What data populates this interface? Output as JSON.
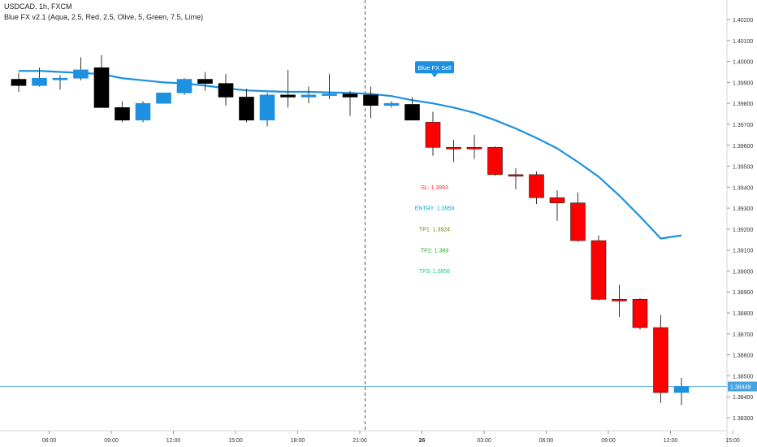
{
  "header": {
    "symbol": "USDCAD, 1h, FXCM",
    "indicator": "Blue FX v2.1 (Aqua, 2.5, Red, 2.5, Olive, 5, Green, 7.5, Lime)"
  },
  "colors": {
    "bull": "#1e90e0",
    "bear_neutral": "#000000",
    "bear_signal": "#ff0000",
    "ma_line": "#1e90e0",
    "signal_label_bg": "#1e90e0",
    "sl": "#ff3333",
    "entry": "#00aacc",
    "tp1": "#808000",
    "tp2": "#22aa22",
    "tp3": "#00dd77",
    "last_price_line": "#4aa3df"
  },
  "chart_data": {
    "type": "candlestick",
    "title": "USDCAD, 1h, FXCM",
    "y_axis": {
      "position": "right",
      "ylim": [
        1.3823,
        1.4027
      ],
      "ticks": [
        "1.40200",
        "1.40100",
        "1.40000",
        "1.39900",
        "1.39800",
        "1.39700",
        "1.39600",
        "1.39500",
        "1.39400",
        "1.39300",
        "1.39200",
        "1.39100",
        "1.39000",
        "1.38900",
        "1.38800",
        "1.38700",
        "1.38600",
        "1.38500",
        "1.38400",
        "1.38300"
      ]
    },
    "x_axis": {
      "ticks": [
        {
          "label": "06:00",
          "bar": 1
        },
        {
          "label": "09:00",
          "bar": 4
        },
        {
          "label": "12:00",
          "bar": 7
        },
        {
          "label": "15:00",
          "bar": 10
        },
        {
          "label": "18:00",
          "bar": 13
        },
        {
          "label": "21:00",
          "bar": 16
        },
        {
          "label": "26",
          "bar": 19
        },
        {
          "label": "03:00",
          "bar": 22
        },
        {
          "label": "06:00",
          "bar": 25
        },
        {
          "label": "09:00",
          "bar": 28
        },
        {
          "label": "12:00",
          "bar": 31
        },
        {
          "label": "15:00",
          "bar": 34
        }
      ]
    },
    "session_divider_bar": 17,
    "candles": [
      {
        "o": 1.39915,
        "h": 1.39945,
        "l": 1.39855,
        "c": 1.39885,
        "k": "n"
      },
      {
        "o": 1.39885,
        "h": 1.3997,
        "l": 1.3988,
        "c": 1.3992,
        "k": "b"
      },
      {
        "o": 1.3992,
        "h": 1.39935,
        "l": 1.39865,
        "c": 1.3992,
        "k": "b"
      },
      {
        "o": 1.3992,
        "h": 1.4002,
        "l": 1.3991,
        "c": 1.3996,
        "k": "b"
      },
      {
        "o": 1.3997,
        "h": 1.4003,
        "l": 1.3978,
        "c": 1.3978,
        "k": "n"
      },
      {
        "o": 1.3978,
        "h": 1.3981,
        "l": 1.3971,
        "c": 1.3972,
        "k": "n"
      },
      {
        "o": 1.3972,
        "h": 1.3981,
        "l": 1.3971,
        "c": 1.398,
        "k": "b"
      },
      {
        "o": 1.398,
        "h": 1.3985,
        "l": 1.398,
        "c": 1.3985,
        "k": "b"
      },
      {
        "o": 1.3985,
        "h": 1.3992,
        "l": 1.3984,
        "c": 1.39915,
        "k": "b"
      },
      {
        "o": 1.39915,
        "h": 1.3995,
        "l": 1.3986,
        "c": 1.39895,
        "k": "n"
      },
      {
        "o": 1.39895,
        "h": 1.3994,
        "l": 1.3979,
        "c": 1.3983,
        "k": "n"
      },
      {
        "o": 1.3983,
        "h": 1.3987,
        "l": 1.3971,
        "c": 1.3972,
        "k": "n"
      },
      {
        "o": 1.3972,
        "h": 1.3985,
        "l": 1.3969,
        "c": 1.3984,
        "k": "b"
      },
      {
        "o": 1.3984,
        "h": 1.3996,
        "l": 1.3978,
        "c": 1.3983,
        "k": "n"
      },
      {
        "o": 1.3983,
        "h": 1.3988,
        "l": 1.398,
        "c": 1.3984,
        "k": "b"
      },
      {
        "o": 1.3984,
        "h": 1.3994,
        "l": 1.3982,
        "c": 1.39845,
        "k": "b"
      },
      {
        "o": 1.39845,
        "h": 1.3986,
        "l": 1.3974,
        "c": 1.3983,
        "k": "n"
      },
      {
        "o": 1.3984,
        "h": 1.3988,
        "l": 1.3973,
        "c": 1.3979,
        "k": "n"
      },
      {
        "o": 1.3979,
        "h": 1.3981,
        "l": 1.3978,
        "c": 1.398,
        "k": "b"
      },
      {
        "o": 1.39795,
        "h": 1.3983,
        "l": 1.3972,
        "c": 1.3972,
        "k": "n"
      },
      {
        "o": 1.3971,
        "h": 1.3976,
        "l": 1.3955,
        "c": 1.3959,
        "k": "s"
      },
      {
        "o": 1.3959,
        "h": 1.39625,
        "l": 1.3952,
        "c": 1.3959,
        "k": "s"
      },
      {
        "o": 1.3959,
        "h": 1.3965,
        "l": 1.39535,
        "c": 1.3959,
        "k": "s"
      },
      {
        "o": 1.3959,
        "h": 1.39595,
        "l": 1.39455,
        "c": 1.3946,
        "k": "s"
      },
      {
        "o": 1.3946,
        "h": 1.3949,
        "l": 1.3939,
        "c": 1.3946,
        "k": "s"
      },
      {
        "o": 1.3946,
        "h": 1.39475,
        "l": 1.3932,
        "c": 1.3935,
        "k": "s"
      },
      {
        "o": 1.3935,
        "h": 1.39385,
        "l": 1.3924,
        "c": 1.39325,
        "k": "s"
      },
      {
        "o": 1.39325,
        "h": 1.39375,
        "l": 1.3914,
        "c": 1.39145,
        "k": "s"
      },
      {
        "o": 1.39145,
        "h": 1.3917,
        "l": 1.3886,
        "c": 1.38865,
        "k": "s"
      },
      {
        "o": 1.38865,
        "h": 1.38935,
        "l": 1.3878,
        "c": 1.38865,
        "k": "s"
      },
      {
        "o": 1.38865,
        "h": 1.3887,
        "l": 1.3872,
        "c": 1.3873,
        "k": "s"
      },
      {
        "o": 1.3873,
        "h": 1.3879,
        "l": 1.3837,
        "c": 1.3842,
        "k": "s"
      },
      {
        "o": 1.3842,
        "h": 1.3849,
        "l": 1.3836,
        "c": 1.38449,
        "k": "b"
      }
    ],
    "ma_line": {
      "x": [
        0,
        1,
        2,
        3,
        4,
        5,
        6,
        7,
        8,
        9,
        10,
        11,
        12,
        13,
        14,
        15,
        16,
        17,
        18,
        19,
        20,
        21,
        22,
        23,
        24,
        25,
        26,
        27,
        28,
        29,
        30,
        31,
        32
      ],
      "y": [
        1.39955,
        1.39955,
        1.3995,
        1.39945,
        1.3994,
        1.3992,
        1.3991,
        1.399,
        1.39895,
        1.39885,
        1.39872,
        1.39862,
        1.39858,
        1.39855,
        1.39855,
        1.39852,
        1.3985,
        1.39845,
        1.39835,
        1.39815,
        1.398,
        1.3978,
        1.39755,
        1.3972,
        1.3968,
        1.39635,
        1.39585,
        1.3952,
        1.3945,
        1.3936,
        1.3926,
        1.39155,
        1.3917
      ]
    },
    "signal_label": {
      "text": "Blue FX Sell",
      "bar": 20,
      "price": 1.3992
    },
    "levels": [
      {
        "key": "sl",
        "text": "SL: 1.3993",
        "bar": 20,
        "price": 1.3939
      },
      {
        "key": "entry",
        "text": "ENTRY: 1.3959",
        "bar": 20,
        "price": 1.3929
      },
      {
        "key": "tp1",
        "text": "TP1: 1.3924",
        "bar": 20,
        "price": 1.3919
      },
      {
        "key": "tp2",
        "text": "TP2: 1.389",
        "bar": 20,
        "price": 1.3909
      },
      {
        "key": "tp3",
        "text": "TP3: 1.3856",
        "bar": 20,
        "price": 1.3899
      }
    ],
    "last_price": {
      "value": 1.38449,
      "label": "1.38449"
    }
  }
}
